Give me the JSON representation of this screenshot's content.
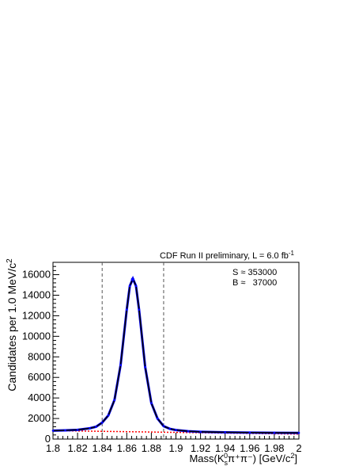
{
  "chart_data": {
    "type": "line",
    "title": "CDF Run II preliminary, L = 6.0 fb",
    "title_superscript": "-1",
    "ylabel": "Candidates per 1.0 MeV/c",
    "ylabel_superscript": "2",
    "xlabel": "Mass(K",
    "xlabel_sub": "s",
    "xlabel_sup": "0",
    "xlabel_rest": "π⁺π⁻) [GeV/c",
    "xlabel_sup2": "2",
    "xlabel_close": "]",
    "xlim": [
      1.8,
      2.0
    ],
    "ylim": [
      0,
      17200
    ],
    "x_ticks": [
      1.8,
      1.82,
      1.84,
      1.86,
      1.88,
      1.9,
      1.92,
      1.94,
      1.96,
      1.98,
      2.0
    ],
    "x_tick_labels": [
      "1.8",
      "1.82",
      "1.84",
      "1.86",
      "1.88",
      "1.9",
      "1.92",
      "1.94",
      "1.96",
      "1.98",
      "2"
    ],
    "y_ticks": [
      0,
      2000,
      4000,
      6000,
      8000,
      10000,
      12000,
      14000,
      16000
    ],
    "y_tick_labels": [
      "0",
      "2000",
      "4000",
      "6000",
      "8000",
      "10000",
      "12000",
      "14000",
      "16000"
    ],
    "annotations": {
      "signal": "S ≈ 353000",
      "background": "B ≈   37000"
    },
    "signal_window": [
      1.84,
      1.89
    ],
    "fit_peak": {
      "x": 1.8648,
      "y": 15550
    },
    "background_fit": {
      "x": [
        1.8,
        2.0
      ],
      "y": [
        820,
        480
      ]
    },
    "series": [
      {
        "role": "data-points",
        "x": [
          1.8,
          1.81,
          1.82,
          1.83,
          1.835,
          1.84,
          1.845,
          1.85,
          1.855,
          1.86,
          1.8625,
          1.865,
          1.8675,
          1.87,
          1.875,
          1.88,
          1.885,
          1.89,
          1.895,
          1.9,
          1.91,
          1.92,
          1.94,
          1.96,
          1.98,
          2.0
        ],
        "y": [
          820,
          850,
          900,
          1050,
          1200,
          1600,
          2300,
          3800,
          7200,
          12600,
          14900,
          15600,
          14900,
          12600,
          7000,
          3500,
          2000,
          1250,
          1000,
          880,
          760,
          700,
          660,
          630,
          610,
          600
        ]
      }
    ],
    "grid": false,
    "legend": "none",
    "colors": {
      "data": "#0000ff",
      "fit": "#000000",
      "background": "#ff0000",
      "window_lines": "#555555"
    }
  }
}
